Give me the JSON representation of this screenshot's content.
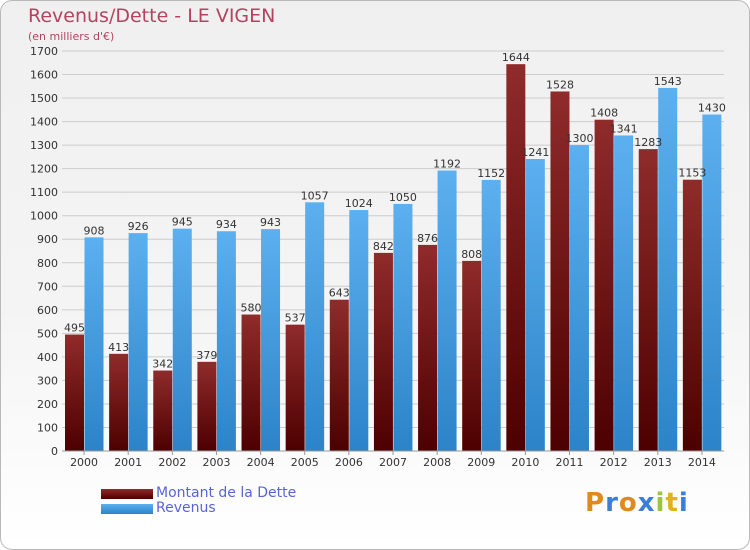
{
  "title": "Revenus/Dette - LE VIGEN",
  "subtitle": "(en milliers d'€)",
  "legend": {
    "dette_label": "Montant de la Dette",
    "revenus_label": "Revenus"
  },
  "logo": {
    "text": "Proxiti"
  },
  "colors": {
    "dette": "#6b0f0f",
    "revenus": "#3d9be0",
    "grid": "#cccccc",
    "title": "#b4435f"
  },
  "chart_data": {
    "type": "bar",
    "title": "Revenus/Dette - LE VIGEN",
    "subtitle": "(en milliers d'€)",
    "categories": [
      "2000",
      "2001",
      "2002",
      "2003",
      "2004",
      "2005",
      "2006",
      "2007",
      "2008",
      "2009",
      "2010",
      "2011",
      "2012",
      "2013",
      "2014"
    ],
    "series": [
      {
        "name": "Montant de la Dette",
        "values": [
          495,
          413,
          342,
          379,
          580,
          537,
          643,
          842,
          876,
          808,
          1644,
          1528,
          1408,
          1283,
          1153
        ],
        "labels": [
          "495",
          "413",
          "342",
          "379",
          "580",
          "537",
          "643",
          "842",
          "876",
          "808",
          "1644",
          "1528",
          "1408",
          "1283",
          "1153"
        ]
      },
      {
        "name": "Revenus",
        "values": [
          908,
          926,
          945,
          934,
          943,
          1057,
          1024,
          1050,
          1192,
          1152,
          1241,
          1300,
          1341,
          1543,
          1430
        ],
        "labels": [
          "908",
          "926",
          "945",
          "934",
          "943",
          "1057",
          "1024",
          "1050",
          "1192",
          "1152",
          "1241",
          "1300",
          "1341",
          "1543",
          "1430"
        ]
      }
    ],
    "ylim": [
      0,
      1700
    ],
    "yticks": [
      0,
      100,
      200,
      300,
      400,
      500,
      600,
      700,
      800,
      900,
      1000,
      1100,
      1200,
      1300,
      1400,
      1500,
      1600,
      1700
    ],
    "grid": true,
    "legend_position": "bottom-left"
  }
}
